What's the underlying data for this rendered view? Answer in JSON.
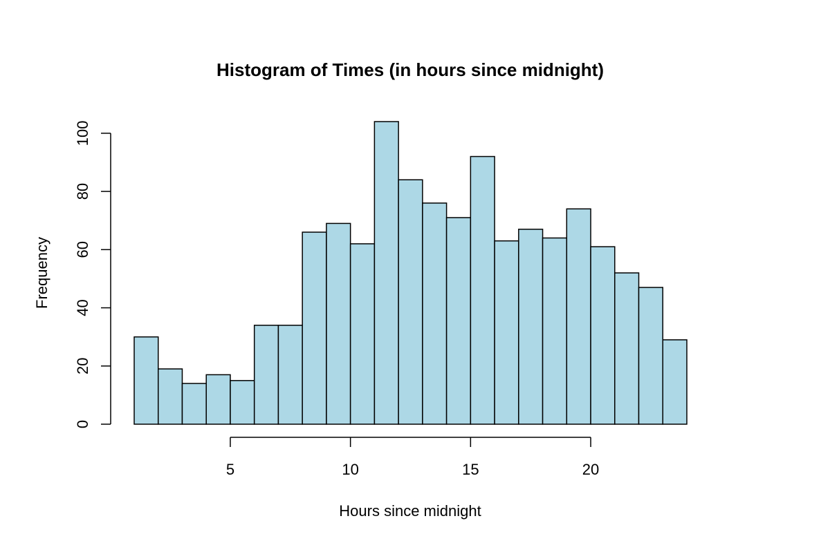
{
  "chart_data": {
    "type": "bar",
    "title": "Histogram of Times (in hours since midnight)",
    "xlabel": "Hours since midnight",
    "ylabel": "Frequency",
    "bin_edges": [
      1,
      2,
      3,
      4,
      5,
      6,
      7,
      8,
      9,
      10,
      11,
      12,
      13,
      14,
      15,
      16,
      17,
      18,
      19,
      20,
      21,
      22,
      23,
      24
    ],
    "values": [
      30,
      19,
      14,
      17,
      15,
      34,
      34,
      66,
      69,
      62,
      104,
      84,
      76,
      71,
      92,
      63,
      67,
      64,
      74,
      61,
      52,
      47,
      29
    ],
    "x_ticks": [
      "5",
      "10",
      "15",
      "20"
    ],
    "y_ticks": [
      "0",
      "20",
      "40",
      "60",
      "80",
      "100"
    ],
    "xlim": [
      1,
      24
    ],
    "ylim": [
      0,
      104
    ],
    "bar_color": "#add8e6",
    "grid": false,
    "legend": "none"
  }
}
